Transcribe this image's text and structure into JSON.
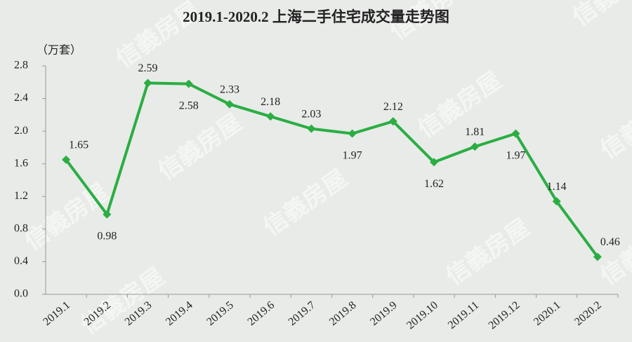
{
  "chart_data": {
    "type": "line",
    "title": "2019.1-2020.2 上海二手住宅成交量走势图",
    "y_unit": "（万套）",
    "watermark": "信義房屋",
    "categories": [
      "2019.1",
      "2019.2",
      "2019.3",
      "2019.4",
      "2019.5",
      "2019.6",
      "2019.7",
      "2019.8",
      "2019.9",
      "2019.10",
      "2019.11",
      "2019.12",
      "2020.1",
      "2020.2"
    ],
    "values": [
      1.65,
      0.98,
      2.59,
      2.58,
      2.33,
      2.18,
      2.03,
      1.97,
      2.12,
      1.62,
      1.81,
      1.97,
      1.14,
      0.46
    ],
    "color": "#2aae43",
    "ylim": [
      0,
      2.8
    ],
    "yticks": [
      {
        "value": 0,
        "label": "0.0"
      },
      0.4,
      0.8,
      1.2,
      1.6,
      {
        "value": 2,
        "label": "2.0"
      },
      2.4,
      2.8
    ]
  }
}
